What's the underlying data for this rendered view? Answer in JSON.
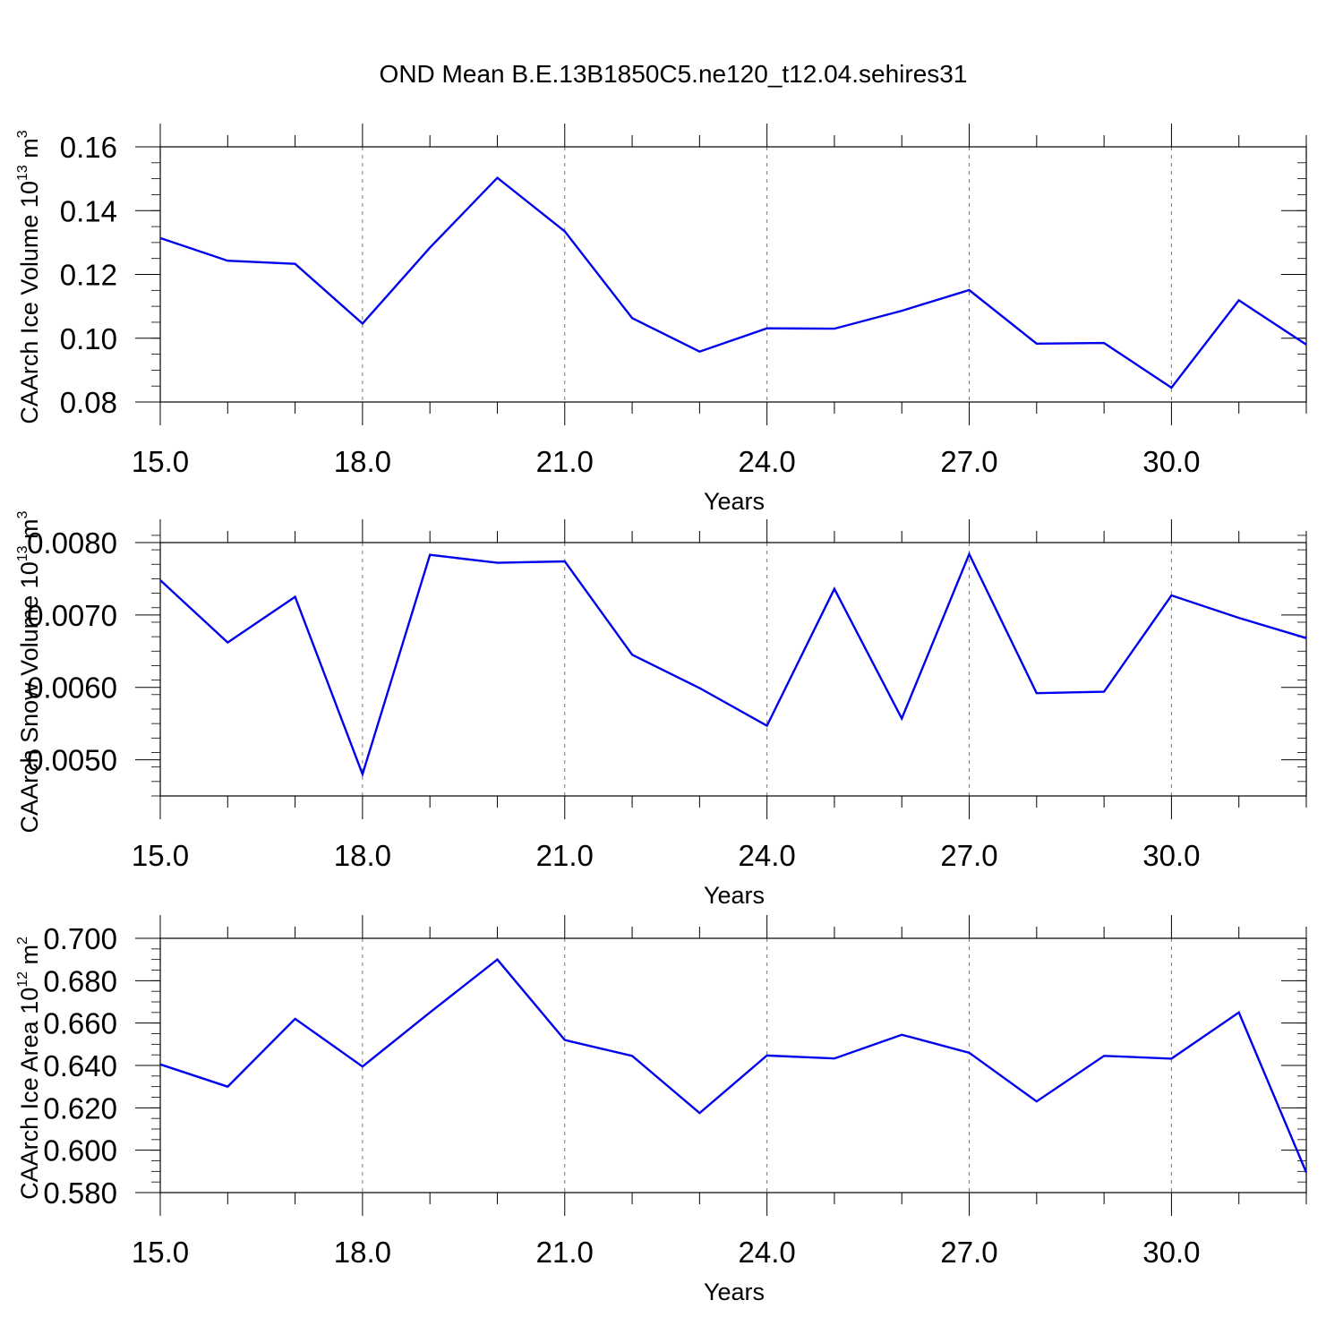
{
  "title": "OND Mean B.E.13B1850C5.ne120_t12.04.sehires31",
  "line_color": "#0000ee",
  "chart_data": [
    {
      "type": "line",
      "xlabel": "Years",
      "ylabel": "CAArch Ice Volume 10",
      "ylabel_exp": "13",
      "ylabel_unit": " m",
      "ylabel_unit_exp": "3",
      "xlim": [
        15,
        32
      ],
      "ylim": [
        0.08,
        0.16
      ],
      "yticks": [
        0.08,
        0.1,
        0.12,
        0.14,
        0.16
      ],
      "ytick_labels": [
        "0.08",
        "0.10",
        "0.12",
        "0.14",
        "0.16"
      ],
      "y_minor_step": 0.005,
      "xticks": [
        15,
        18,
        21,
        24,
        27,
        30
      ],
      "xtick_labels": [
        "15.0",
        "18.0",
        "21.0",
        "24.0",
        "27.0",
        "30.0"
      ],
      "x": [
        15,
        16,
        17,
        18,
        19,
        20,
        21,
        22,
        23,
        24,
        25,
        26,
        27,
        28,
        29,
        30,
        31,
        32
      ],
      "y": [
        0.1314,
        0.1243,
        0.1233,
        0.1046,
        0.1284,
        0.1503,
        0.1335,
        0.1063,
        0.0958,
        0.1031,
        0.103,
        0.1086,
        0.1151,
        0.0983,
        0.0985,
        0.0845,
        0.1119,
        0.098
      ]
    },
    {
      "type": "line",
      "xlabel": "Years",
      "ylabel": "CAArch Snow Volume 10",
      "ylabel_exp": "13",
      "ylabel_unit": " m",
      "ylabel_unit_exp": "3",
      "xlim": [
        15,
        32
      ],
      "ylim": [
        0.0045,
        0.008
      ],
      "yticks": [
        0.005,
        0.006,
        0.007,
        0.008
      ],
      "ytick_labels": [
        "0.0050",
        "0.0060",
        "0.0070",
        "0.0080"
      ],
      "y_minor_step": 0.0002,
      "xticks": [
        15,
        18,
        21,
        24,
        27,
        30
      ],
      "xtick_labels": [
        "15.0",
        "18.0",
        "21.0",
        "24.0",
        "27.0",
        "30.0"
      ],
      "x": [
        15,
        16,
        17,
        18,
        19,
        20,
        21,
        22,
        23,
        24,
        25,
        26,
        27,
        28,
        29,
        30,
        31,
        32
      ],
      "y": [
        0.00748,
        0.00662,
        0.00725,
        0.0048,
        0.00783,
        0.00772,
        0.00774,
        0.00645,
        0.00599,
        0.00547,
        0.00736,
        0.00557,
        0.00784,
        0.00592,
        0.00594,
        0.00727,
        0.00696,
        0.00668
      ]
    },
    {
      "type": "line",
      "xlabel": "Years",
      "ylabel": "CAArch Ice Area 10",
      "ylabel_exp": "12",
      "ylabel_unit": " m",
      "ylabel_unit_exp": "2",
      "xlim": [
        15,
        32
      ],
      "ylim": [
        0.58,
        0.7
      ],
      "yticks": [
        0.58,
        0.6,
        0.62,
        0.64,
        0.66,
        0.68,
        0.7
      ],
      "ytick_labels": [
        "0.580",
        "0.600",
        "0.620",
        "0.640",
        "0.660",
        "0.680",
        "0.700"
      ],
      "y_minor_step": 0.005,
      "xticks": [
        15,
        18,
        21,
        24,
        27,
        30
      ],
      "xtick_labels": [
        "15.0",
        "18.0",
        "21.0",
        "24.0",
        "27.0",
        "30.0"
      ],
      "x": [
        15,
        16,
        17,
        18,
        19,
        20,
        21,
        22,
        23,
        24,
        25,
        26,
        27,
        28,
        29,
        30,
        31,
        32
      ],
      "y": [
        0.6405,
        0.63,
        0.662,
        0.6395,
        0.665,
        0.69,
        0.652,
        0.6445,
        0.6175,
        0.6447,
        0.6433,
        0.6545,
        0.646,
        0.623,
        0.6445,
        0.6432,
        0.665,
        0.5895
      ]
    }
  ]
}
